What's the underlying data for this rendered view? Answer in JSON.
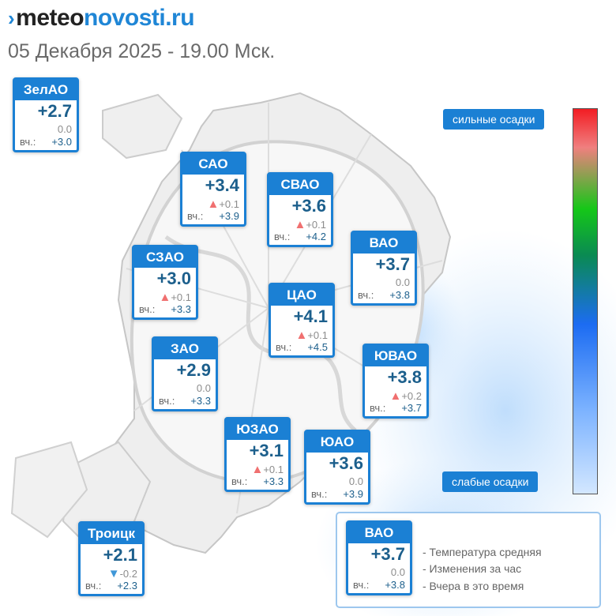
{
  "header": {
    "logo_part1": "meteo",
    "logo_part2": "novosti.ru",
    "date_line": "05 Декабря 2025 - 19.00 Мск."
  },
  "map": {
    "yesterday_label": "вч.:",
    "districts": [
      {
        "id": "zelao",
        "name": "ЗелАО",
        "temp": "+2.7",
        "change": "0.0",
        "trend": "none",
        "yesterday": "+3.0"
      },
      {
        "id": "sao",
        "name": "САО",
        "temp": "+3.4",
        "change": "+0.1",
        "trend": "up",
        "yesterday": "+3.9"
      },
      {
        "id": "svao",
        "name": "СВАО",
        "temp": "+3.6",
        "change": "+0.1",
        "trend": "up",
        "yesterday": "+4.2"
      },
      {
        "id": "vao",
        "name": "ВАО",
        "temp": "+3.7",
        "change": "0.0",
        "trend": "none",
        "yesterday": "+3.8"
      },
      {
        "id": "szao",
        "name": "СЗАО",
        "temp": "+3.0",
        "change": "+0.1",
        "trend": "up",
        "yesterday": "+3.3"
      },
      {
        "id": "cao",
        "name": "ЦАО",
        "temp": "+4.1",
        "change": "+0.1",
        "trend": "up",
        "yesterday": "+4.5"
      },
      {
        "id": "zao",
        "name": "ЗАО",
        "temp": "+2.9",
        "change": "0.0",
        "trend": "none",
        "yesterday": "+3.3"
      },
      {
        "id": "yuvao",
        "name": "ЮВАО",
        "temp": "+3.8",
        "change": "+0.2",
        "trend": "up",
        "yesterday": "+3.7"
      },
      {
        "id": "yuzao",
        "name": "ЮЗАО",
        "temp": "+3.1",
        "change": "+0.1",
        "trend": "up",
        "yesterday": "+3.3"
      },
      {
        "id": "yuao",
        "name": "ЮАО",
        "temp": "+3.6",
        "change": "0.0",
        "trend": "none",
        "yesterday": "+3.9"
      },
      {
        "id": "troitsk",
        "name": "Троицк",
        "temp": "+2.1",
        "change": "-0.2",
        "trend": "down",
        "yesterday": "+2.3"
      }
    ]
  },
  "precipitation": {
    "strong_label": "сильные осадки",
    "weak_label": "слабые осадки",
    "colors": [
      "#f21d23",
      "#f07f7f",
      "#15c718",
      "#0a8a52",
      "#1c6cf2",
      "#7bb2ff",
      "#d3e7ff"
    ]
  },
  "legend": {
    "sample": {
      "name": "ВАО",
      "temp": "+3.7",
      "change": "0.0",
      "yesterday": "+3.8"
    },
    "lines": [
      "- Температура средняя",
      "- Изменения за час",
      "- Вчера в это время"
    ]
  },
  "colors": {
    "accent": "#1b80d4",
    "temp_text": "#1c5f8c",
    "trend_up": "#f07070",
    "trend_down": "#3f97d8"
  }
}
